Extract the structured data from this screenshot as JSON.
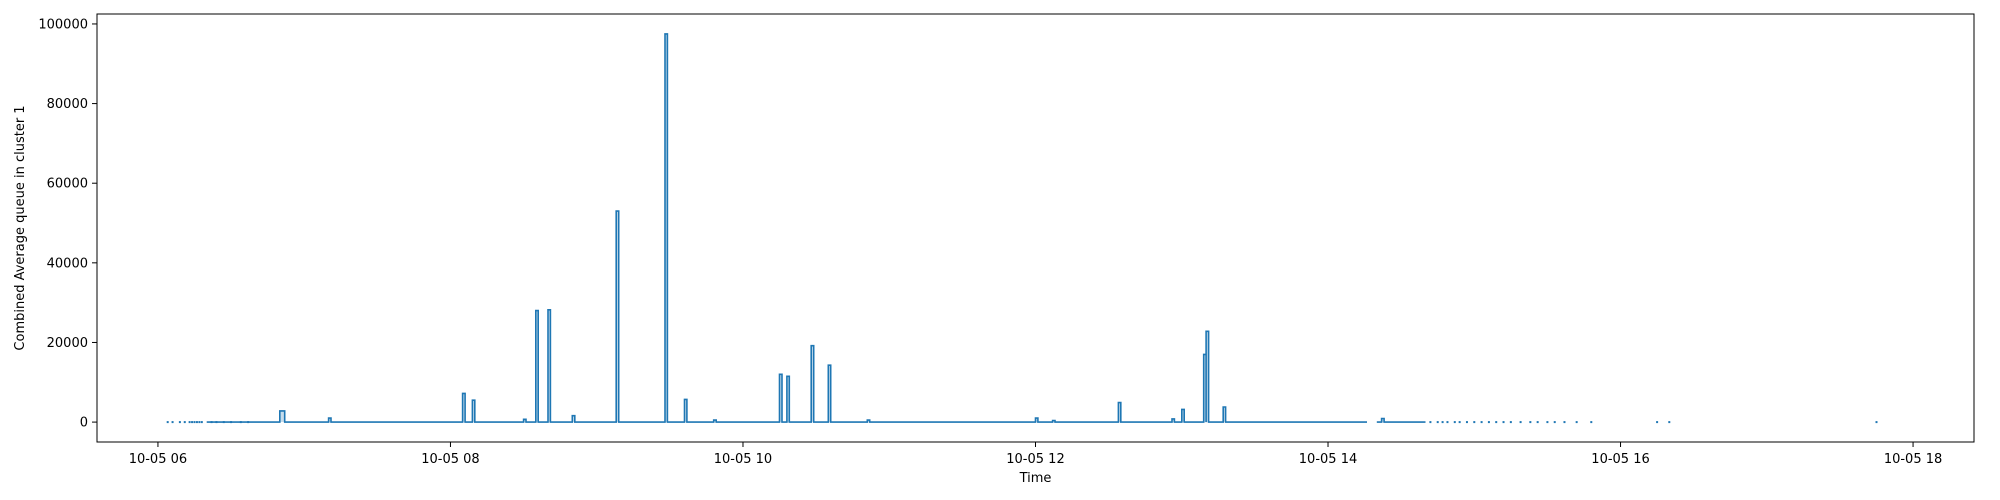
{
  "chart_data": {
    "type": "line",
    "xlabel": "Time",
    "ylabel": "Combined Average queue in cluster 1",
    "series_color": "#1f77b4",
    "xlim": [
      "10-05 05:35",
      "10-05 18:25"
    ],
    "ylim": [
      -5000,
      102500
    ],
    "x_ticks": [
      {
        "t": "10-05 06:00",
        "label": "10-05 06"
      },
      {
        "t": "10-05 08:00",
        "label": "10-05 08"
      },
      {
        "t": "10-05 10:00",
        "label": "10-05 10"
      },
      {
        "t": "10-05 12:00",
        "label": "10-05 12"
      },
      {
        "t": "10-05 14:00",
        "label": "10-05 14"
      },
      {
        "t": "10-05 16:00",
        "label": "10-05 16"
      },
      {
        "t": "10-05 18:00",
        "label": "10-05 18"
      }
    ],
    "y_ticks": [
      {
        "v": 0,
        "label": "0"
      },
      {
        "v": 20000,
        "label": "20000"
      },
      {
        "v": 40000,
        "label": "40000"
      },
      {
        "v": 60000,
        "label": "60000"
      },
      {
        "v": 80000,
        "label": "80000"
      },
      {
        "v": 100000,
        "label": "100000"
      }
    ],
    "spikes": [
      {
        "t": "10-05 06:50",
        "dur": 2,
        "v": 2800
      },
      {
        "t": "10-05 07:10",
        "dur": 1,
        "v": 1000
      },
      {
        "t": "10-05 08:05",
        "dur": 1,
        "v": 7200
      },
      {
        "t": "10-05 08:09",
        "dur": 1,
        "v": 5500
      },
      {
        "t": "10-05 08:30",
        "dur": 1,
        "v": 700
      },
      {
        "t": "10-05 08:35",
        "dur": 1,
        "v": 28000
      },
      {
        "t": "10-05 08:40",
        "dur": 1,
        "v": 28200
      },
      {
        "t": "10-05 08:50",
        "dur": 1,
        "v": 1600
      },
      {
        "t": "10-05 09:08",
        "dur": 1,
        "v": 53000
      },
      {
        "t": "10-05 09:28",
        "dur": 1,
        "v": 97500
      },
      {
        "t": "10-05 09:36",
        "dur": 1,
        "v": 5700
      },
      {
        "t": "10-05 09:48",
        "dur": 1,
        "v": 500
      },
      {
        "t": "10-05 10:15",
        "dur": 1,
        "v": 12000
      },
      {
        "t": "10-05 10:18",
        "dur": 1,
        "v": 11500
      },
      {
        "t": "10-05 10:28",
        "dur": 1,
        "v": 19200
      },
      {
        "t": "10-05 10:35",
        "dur": 1,
        "v": 14300
      },
      {
        "t": "10-05 10:51",
        "dur": 1,
        "v": 500
      },
      {
        "t": "10-05 12:00",
        "dur": 1,
        "v": 1000
      },
      {
        "t": "10-05 12:07",
        "dur": 1,
        "v": 400
      },
      {
        "t": "10-05 12:34",
        "dur": 1,
        "v": 4900
      },
      {
        "t": "10-05 12:56",
        "dur": 1,
        "v": 800
      },
      {
        "t": "10-05 13:00",
        "dur": 1,
        "v": 3200
      },
      {
        "t": "10-05 13:09",
        "dur": 1,
        "v": 17000
      },
      {
        "t": "10-05 13:10",
        "dur": 1,
        "v": 22800
      },
      {
        "t": "10-05 13:17",
        "dur": 1,
        "v": 3800
      },
      {
        "t": "10-05 14:22",
        "dur": 1,
        "v": 900
      }
    ],
    "line_segments": [
      {
        "start": "10-05 06:20",
        "end": "10-05 14:16"
      },
      {
        "start": "10-05 14:20",
        "end": "10-05 14:40"
      }
    ],
    "sparse_points": [
      "10-05 06:04",
      "10-05 06:06",
      "10-05 06:09",
      "10-05 06:11",
      "10-05 06:13",
      "10-05 06:14",
      "10-05 06:15",
      "10-05 06:16",
      "10-05 06:17",
      "10-05 06:18",
      "10-05 06:22",
      "10-05 06:24",
      "10-05 06:27",
      "10-05 06:30",
      "10-05 06:34",
      "10-05 06:37",
      "10-05 14:42",
      "10-05 14:45",
      "10-05 14:47",
      "10-05 14:49",
      "10-05 14:52",
      "10-05 14:54",
      "10-05 14:57",
      "10-05 15:00",
      "10-05 15:03",
      "10-05 15:06",
      "10-05 15:09",
      "10-05 15:12",
      "10-05 15:15",
      "10-05 15:19",
      "10-05 15:23",
      "10-05 15:26",
      "10-05 15:30",
      "10-05 15:33",
      "10-05 15:37",
      "10-05 15:42",
      "10-05 15:48",
      "10-05 16:15",
      "10-05 16:20",
      "10-05 17:45"
    ]
  }
}
